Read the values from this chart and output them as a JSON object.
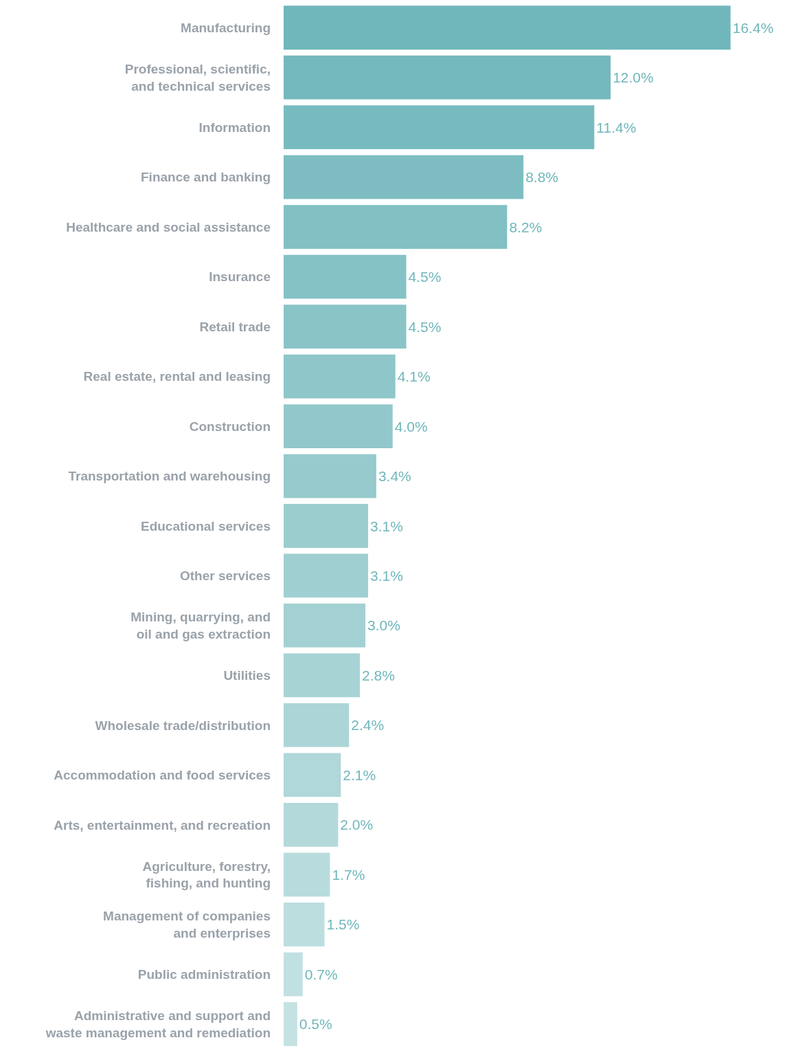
{
  "chart_data": {
    "type": "bar",
    "orientation": "horizontal",
    "categories": [
      "Manufacturing",
      "Professional, scientific,\nand technical services",
      "Information",
      "Finance and banking",
      "Healthcare and social assistance",
      "Insurance",
      "Retail trade",
      "Real estate, rental and leasing",
      "Construction",
      "Transportation and warehousing",
      "Educational services",
      "Other services",
      "Mining, quarrying, and\noil and gas extraction",
      "Utilities",
      "Wholesale trade/distribution",
      "Accommodation and food services",
      "Arts, entertainment, and recreation",
      "Agriculture, forestry,\nfishing, and hunting",
      "Management of companies\nand enterprises",
      "Public administration",
      "Administrative and support and\nwaste management and remediation"
    ],
    "values": [
      16.4,
      12.0,
      11.4,
      8.8,
      8.2,
      4.5,
      4.5,
      4.1,
      4.0,
      3.4,
      3.1,
      3.1,
      3.0,
      2.8,
      2.4,
      2.1,
      2.0,
      1.7,
      1.5,
      0.7,
      0.5
    ],
    "value_labels": [
      "16.4%",
      "12.0%",
      "11.4%",
      "8.8%",
      "8.2%",
      "4.5%",
      "4.5%",
      "4.1%",
      "4.0%",
      "3.4%",
      "3.1%",
      "3.1%",
      "3.0%",
      "2.8%",
      "2.4%",
      "2.1%",
      "2.0%",
      "1.7%",
      "1.5%",
      "0.7%",
      "0.5%"
    ],
    "colors": [
      "#70b7bb",
      "#74b9bd",
      "#78bbbf",
      "#7dbdc1",
      "#81c0c3",
      "#85c2c5",
      "#8ac4c7",
      "#8ec6c9",
      "#92c8cb",
      "#96cacd",
      "#9bcdcf",
      "#9fcfd1",
      "#a3d1d3",
      "#a7d3d5",
      "#acd5d7",
      "#b0d7d9",
      "#b4d9db",
      "#b8dcdd",
      "#bddedf",
      "#c1e0e1",
      "#c5e2e3"
    ],
    "legend": false
  }
}
